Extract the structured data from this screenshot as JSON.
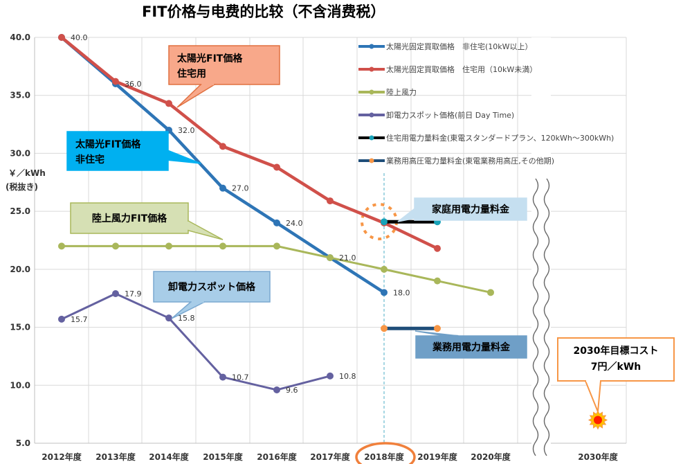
{
  "chart_data": {
    "type": "line",
    "title": "FIT价格与电费的比较（不含消费税）",
    "ylabel_line1": "￥／kWh",
    "ylabel_line2": "(税抜き)",
    "ylim": [
      5,
      40
    ],
    "yticks": [
      "5.0",
      "10.0",
      "15.0",
      "20.0",
      "25.0",
      "30.0",
      "35.0",
      "40.0"
    ],
    "categories": [
      "2012年度",
      "2013年度",
      "2014年度",
      "2015年度",
      "2016年度",
      "2017年度",
      "2018年度",
      "2019年度",
      "2020年度",
      "2030年度"
    ],
    "grid": true,
    "legend_position": "top-right",
    "series": [
      {
        "name": "太陽光固定買取価格　非住宅(10kW以上）",
        "color": "#2e75b6",
        "x": [
          "2012年度",
          "2013年度",
          "2014年度",
          "2015年度",
          "2016年度",
          "2017年度",
          "2018年度"
        ],
        "values": [
          40.0,
          36.0,
          32.0,
          27.0,
          24.0,
          21.0,
          18.0
        ],
        "labels": [
          "40.0",
          "36.0",
          "32.0",
          "27.0",
          "24.0",
          "",
          "18.0"
        ]
      },
      {
        "name": "太陽光固定買取価格　住宅用（10kW未満）",
        "color": "#d0504a",
        "x": [
          "2012年度",
          "2013年度",
          "2014年度",
          "2015年度",
          "2016年度",
          "2017年度",
          "2018年度",
          "2019年度"
        ],
        "values": [
          40.0,
          36.2,
          34.3,
          30.6,
          28.8,
          25.9,
          24.0,
          21.8
        ],
        "labels": []
      },
      {
        "name": "陸上風力",
        "color": "#a9b75a",
        "x": [
          "2012年度",
          "2013年度",
          "2014年度",
          "2015年度",
          "2016年度",
          "2017年度",
          "2018年度",
          "2019年度",
          "2020年度"
        ],
        "values": [
          22.0,
          22.0,
          22.0,
          22.0,
          22.0,
          21.0,
          20.0,
          19.0,
          18.0
        ],
        "labels": [
          "",
          "",
          "",
          "",
          "",
          "21.0",
          "",
          "",
          ""
        ]
      },
      {
        "name": "卸電力スポット価格(前日 Day Time)",
        "color": "#6461a0",
        "x": [
          "2012年度",
          "2013年度",
          "2014年度",
          "2015年度",
          "2016年度",
          "2017年度"
        ],
        "values": [
          15.7,
          17.9,
          15.8,
          10.7,
          9.6,
          10.8
        ],
        "labels": [
          "15.7",
          "17.9",
          "15.8",
          "10.7",
          "9.6",
          "10.8"
        ]
      },
      {
        "name": "住宅用電力量料金(東電スタンダードプラン、120kWh～300kWh)",
        "color": "#000000",
        "marker_color": "#17a2b8",
        "x": [
          "2018年度",
          "2019年度"
        ],
        "values": [
          24.1,
          24.1
        ],
        "labels": []
      },
      {
        "name": "業務用高圧電力量料金(東電業務用高圧,その他期)",
        "color": "#1f4e79",
        "marker_color": "#f79646",
        "x": [
          "2018年度",
          "2019年度"
        ],
        "values": [
          14.9,
          14.9
        ],
        "labels": []
      }
    ],
    "target": {
      "x": "2030年度",
      "value": 7.0,
      "label_line1": "2030年目標コスト",
      "label_line2": "7円／kWh"
    },
    "callouts": [
      {
        "text_line1": "太陽光FIT価格",
        "text_line2": "住宅用",
        "fill": "#f8a88a",
        "stroke": "#e07040"
      },
      {
        "text_line1": "太陽光FIT価格",
        "text_line2": "非住宅",
        "fill": "#00b0f0",
        "stroke": "#00b0f0"
      },
      {
        "text_line1": "陸上風力FIT価格",
        "text_line2": "",
        "fill": "#d6e0b4",
        "stroke": "#a9b75a"
      },
      {
        "text_line1": "卸電力スポット価格",
        "text_line2": "",
        "fill": "#a8cde8",
        "stroke": "#7aa8d0"
      },
      {
        "text_line1": "家庭用電力量料金",
        "text_line2": "",
        "fill": "#c5dff0",
        "stroke": "#c5dff0"
      },
      {
        "text_line1": "業務用電力量料金",
        "text_line2": "",
        "fill": "#6f9fc7",
        "stroke": "#6f9fc7"
      }
    ]
  }
}
